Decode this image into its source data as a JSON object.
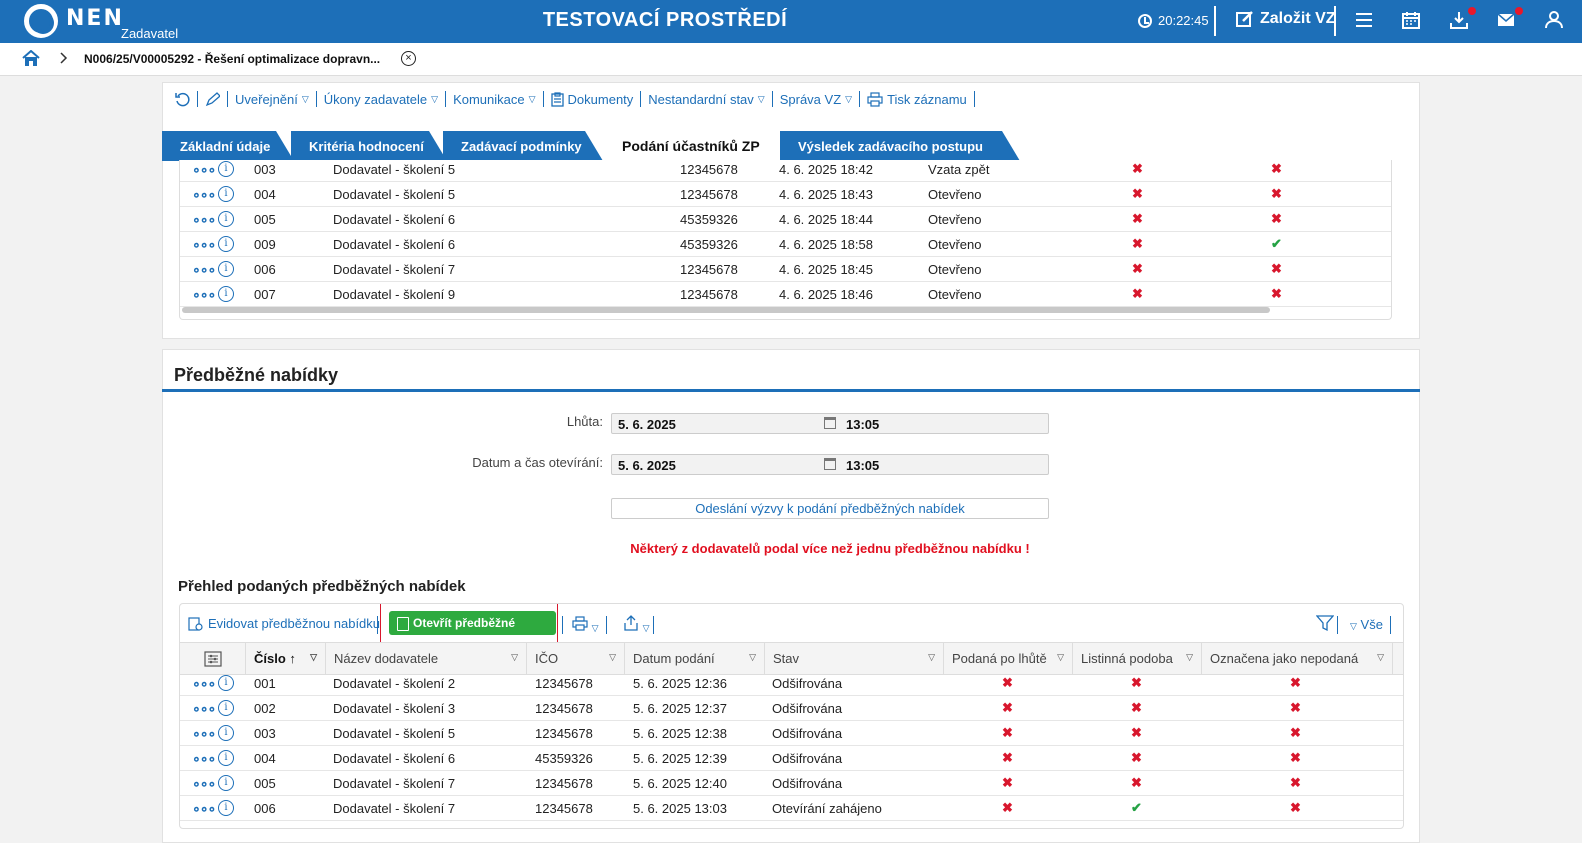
{
  "topbar": {
    "brand": "NEN",
    "brand_sub": "Zadavatel",
    "env_title": "TESTOVACÍ PROSTŘEDÍ",
    "clock": "20:22:45",
    "create_label": "Založit VZ"
  },
  "breadcrumb": {
    "current": "N006/25/V00005292 - Řešení optimalizace dopravn..."
  },
  "toolbar": {
    "items": [
      "Uveřejnění",
      "Úkony zadavatele",
      "Komunikace",
      "Dokumenty",
      "Nestandardní stav",
      "Správa VZ",
      "Tisk záznamu"
    ]
  },
  "tabs": [
    "Základní údaje",
    "Kritéria hodnocení",
    "Zadávací podmínky",
    "Podání účastníků ZP",
    "Výsledek zadávacího postupu"
  ],
  "upper_table": {
    "rows": [
      {
        "num": "003",
        "name": "Dodavatel - školení 5",
        "ico": "12345678",
        "date": "4. 6. 2025 18:42",
        "status": "Vzata zpět",
        "c1": "x",
        "c2": "x"
      },
      {
        "num": "004",
        "name": "Dodavatel - školení 5",
        "ico": "12345678",
        "date": "4. 6. 2025 18:43",
        "status": "Otevřeno",
        "c1": "x",
        "c2": "x"
      },
      {
        "num": "005",
        "name": "Dodavatel - školení 6",
        "ico": "45359326",
        "date": "4. 6. 2025 18:44",
        "status": "Otevřeno",
        "c1": "x",
        "c2": "x"
      },
      {
        "num": "009",
        "name": "Dodavatel - školení 6",
        "ico": "45359326",
        "date": "4. 6. 2025 18:58",
        "status": "Otevřeno",
        "c1": "x",
        "c2": "check"
      },
      {
        "num": "006",
        "name": "Dodavatel - školení 7",
        "ico": "12345678",
        "date": "4. 6. 2025 18:45",
        "status": "Otevřeno",
        "c1": "x",
        "c2": "x"
      },
      {
        "num": "007",
        "name": "Dodavatel - školení 9",
        "ico": "12345678",
        "date": "4. 6. 2025 18:46",
        "status": "Otevřeno",
        "c1": "x",
        "c2": "x"
      }
    ]
  },
  "prelim": {
    "title": "Předběžné nabídky",
    "deadline_label": "Lhůta:",
    "deadline_date": "5. 6. 2025",
    "deadline_time": "13:05",
    "opening_label": "Datum a čas otevírání:",
    "opening_date": "5. 6. 2025",
    "opening_time": "13:05",
    "send_button": "Odeslání výzvy k podání předběžných nabídek",
    "warning": "Některý z dodavatelů podal více než jednu předběžnou nabídku !",
    "overview_title": "Přehled podaných předběžných nabídek"
  },
  "lower_toolbar": {
    "record": "Evidovat předběžnou nabídku",
    "open": "Otevřít předběžné nabídky",
    "all": "Vše"
  },
  "lower_table": {
    "headers": [
      "Číslo",
      "Název dodavatele",
      "IČO",
      "Datum podání",
      "Stav",
      "Podaná po lhůtě",
      "Listinná podoba",
      "Označena jako nepodaná"
    ],
    "rows": [
      {
        "num": "001",
        "name": "Dodavatel - školení 2",
        "ico": "12345678",
        "date": "5. 6. 2025 12:36",
        "status": "Odšifrována",
        "late": "x",
        "paper": "x",
        "unsub": "x"
      },
      {
        "num": "002",
        "name": "Dodavatel - školení 3",
        "ico": "12345678",
        "date": "5. 6. 2025 12:37",
        "status": "Odšifrována",
        "late": "x",
        "paper": "x",
        "unsub": "x"
      },
      {
        "num": "003",
        "name": "Dodavatel - školení 5",
        "ico": "12345678",
        "date": "5. 6. 2025 12:38",
        "status": "Odšifrována",
        "late": "x",
        "paper": "x",
        "unsub": "x"
      },
      {
        "num": "004",
        "name": "Dodavatel - školení 6",
        "ico": "45359326",
        "date": "5. 6. 2025 12:39",
        "status": "Odšifrována",
        "late": "x",
        "paper": "x",
        "unsub": "x"
      },
      {
        "num": "005",
        "name": "Dodavatel - školení 7",
        "ico": "12345678",
        "date": "5. 6. 2025 12:40",
        "status": "Odšifrována",
        "late": "x",
        "paper": "x",
        "unsub": "x"
      },
      {
        "num": "006",
        "name": "Dodavatel - školení 7",
        "ico": "12345678",
        "date": "5. 6. 2025 13:03",
        "status": "Otevírání zahájeno",
        "late": "x",
        "paper": "check",
        "unsub": "x"
      }
    ]
  },
  "colors": {
    "primary": "#1d6fb8",
    "accent_green": "#2eaa3f",
    "error_red": "#e10f1f"
  },
  "icons": [
    "home-icon",
    "menu-icon",
    "calendar-icon",
    "download-icon",
    "mail-icon",
    "user-icon",
    "refresh-icon",
    "pencil-icon",
    "document-icon",
    "printer-icon",
    "export-icon",
    "filter-icon",
    "columns-settings-icon"
  ]
}
